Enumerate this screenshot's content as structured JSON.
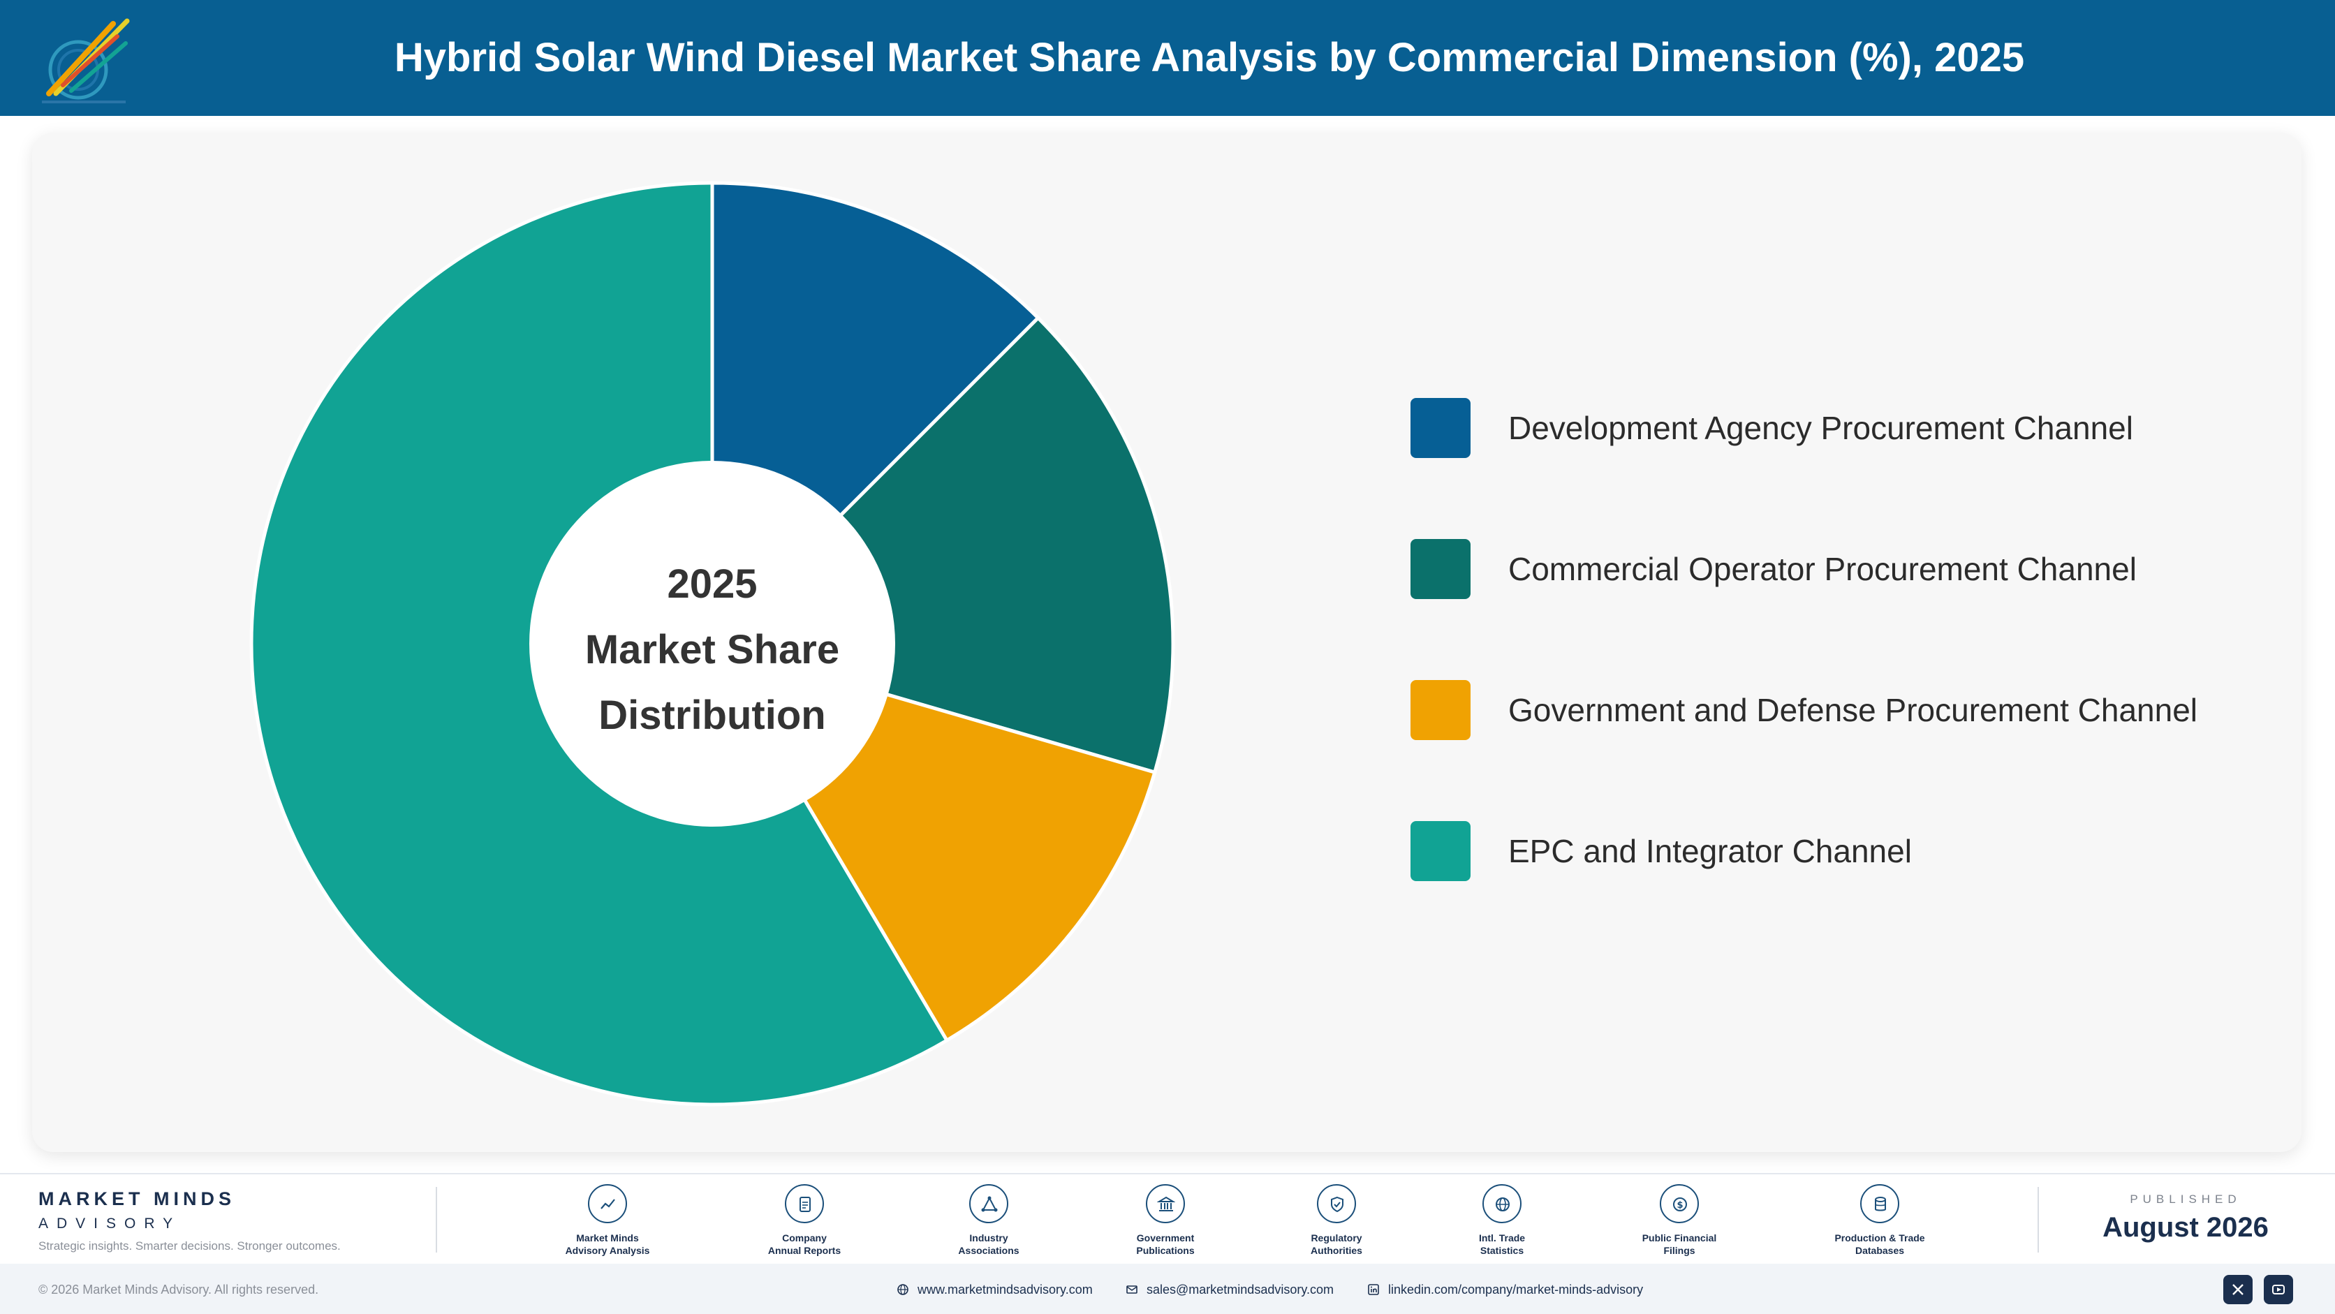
{
  "header": {
    "title": "Hybrid Solar Wind Diesel Market Share Analysis by Commercial Dimension (%), 2025",
    "logo_text": "Market Minds Advisory"
  },
  "chart_data": {
    "type": "pie",
    "style": "donut",
    "title": "Hybrid Solar Wind Diesel Market Share Analysis by Commercial Dimension (%), 2025",
    "center_label": [
      "2025",
      "Market Share",
      "Distribution"
    ],
    "categories": [
      "Development Agency Procurement Channel",
      "Commercial Operator Procurement Channel",
      "Government and Defense Procurement Channel",
      "EPC and Integrator Channel"
    ],
    "values": [
      12.5,
      17.0,
      12.0,
      58.5
    ],
    "unit": "%",
    "colors": [
      "#065f95",
      "#0b716b",
      "#f0a202",
      "#11a394"
    ],
    "legend_position": "right",
    "data_labels": false
  },
  "footer": {
    "brand_name": "MARKET MINDS",
    "brand_sub": "ADVISORY",
    "tagline": "Strategic insights. Smarter decisions. Stronger outcomes.",
    "sources": [
      {
        "label_line1": "Market Minds",
        "label_line2": "Advisory Analysis",
        "icon": "trend-icon"
      },
      {
        "label_line1": "Company",
        "label_line2": "Annual Reports",
        "icon": "document-icon"
      },
      {
        "label_line1": "Industry",
        "label_line2": "Associations",
        "icon": "network-icon"
      },
      {
        "label_line1": "Government",
        "label_line2": "Publications",
        "icon": "building-icon"
      },
      {
        "label_line1": "Regulatory",
        "label_line2": "Authorities",
        "icon": "shield-icon"
      },
      {
        "label_line1": "Intl. Trade",
        "label_line2": "Statistics",
        "icon": "globe-icon"
      },
      {
        "label_line1": "Public Financial",
        "label_line2": "Filings",
        "icon": "coin-icon"
      },
      {
        "label_line1": "Production & Trade",
        "label_line2": "Databases",
        "icon": "database-icon"
      }
    ],
    "published_label": "PUBLISHED",
    "published_date": "August 2026",
    "copyright": "© 2026 Market Minds Advisory. All rights reserved.",
    "website": "www.marketmindsadvisory.com",
    "email": "sales@marketmindsadvisory.com",
    "linkedin": "linkedin.com/company/market-minds-advisory"
  }
}
